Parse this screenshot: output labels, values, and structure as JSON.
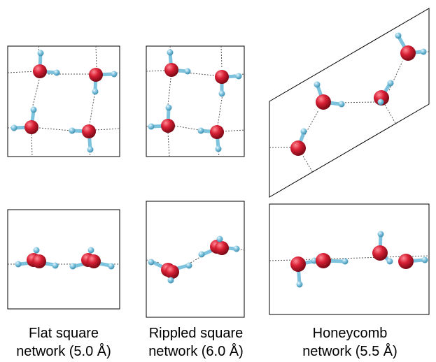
{
  "captions": [
    {
      "line1": "Flat square",
      "line2": "network (5.0 Å)"
    },
    {
      "line1": "Rippled square",
      "line2": "network (6.0 Å)"
    },
    {
      "line1": "Honeycomb",
      "line2": "network (5.5 Å)"
    }
  ],
  "colors": {
    "oxygen": "#d81f34",
    "hydrogen": "#7ec3de",
    "bond": "#555555",
    "frame": "#000000"
  }
}
